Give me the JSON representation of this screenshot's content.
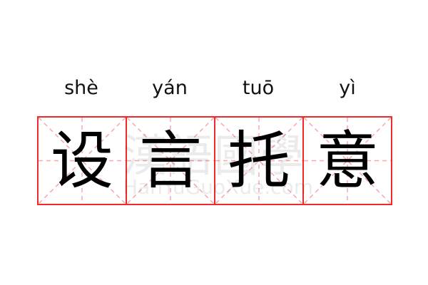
{
  "pinyin": [
    "shè",
    "yán",
    "tuō",
    "yì"
  ],
  "characters": [
    "设",
    "言",
    "托",
    "意"
  ],
  "watermark": {
    "chinese": "漢語國學",
    "latin": "HanYuGuoXue.com"
  },
  "colors": {
    "grid_border": "#f02a2a",
    "guide_lines": "#f7a8a8",
    "text": "#000000"
  }
}
